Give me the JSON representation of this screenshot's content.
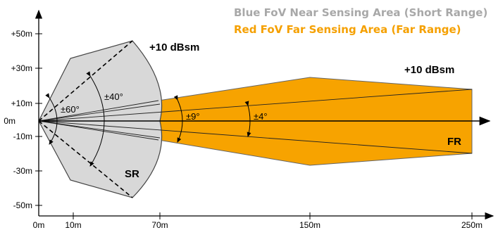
{
  "legend": {
    "blue_title": "Blue FoV Near Sensing Area (Short Range)",
    "red_title": "Red  FoV Far Sensing Area (Far Range)"
  },
  "colors": {
    "short_range_fill": "#d8d8d8",
    "far_range_fill": "#f7a300",
    "axis": "#000000",
    "blue_title": "#a8a8a8",
    "red_title": "#f5a000"
  },
  "axes": {
    "x_ticks": [
      "0m",
      "10m",
      "70m",
      "150m",
      "250m"
    ],
    "y_ticks": [
      "+50m",
      "+30m",
      "+10m",
      "0m",
      "-10m",
      "-30m",
      "-50m"
    ]
  },
  "annotations": {
    "sr_gain": "+10 dBsm",
    "fr_gain": "+10 dBsm",
    "sr_label": "SR",
    "fr_label": "FR",
    "angle_60": "±60°",
    "angle_40": "±40°",
    "angle_9": "±9°",
    "angle_4": "±4°"
  }
}
